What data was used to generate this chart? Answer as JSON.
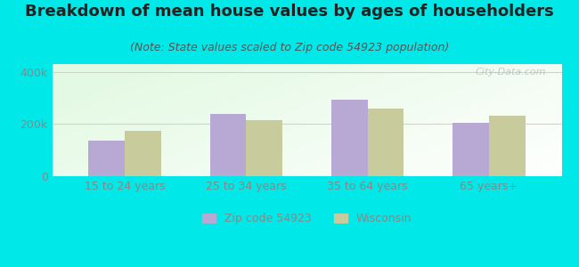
{
  "title": "Breakdown of mean house values by ages of householders",
  "subtitle": "(Note: State values scaled to Zip code 54923 population)",
  "categories": [
    "15 to 24 years",
    "25 to 34 years",
    "35 to 64 years",
    "65 years+"
  ],
  "zip_values": [
    135000,
    240000,
    295000,
    205000
  ],
  "state_values": [
    175000,
    215000,
    260000,
    232000
  ],
  "zip_color": "#b8a8d4",
  "state_color": "#c8cc9c",
  "background_outer": "#00e8e8",
  "ylim": [
    0,
    430000
  ],
  "ytick_labels": [
    "0",
    "200k",
    "400k"
  ],
  "ytick_values": [
    0,
    200000,
    400000
  ],
  "zip_label": "Zip code 54923",
  "state_label": "Wisconsin",
  "watermark": "City-Data.com",
  "title_fontsize": 13,
  "subtitle_fontsize": 9,
  "axis_fontsize": 9,
  "legend_fontsize": 9,
  "bar_width": 0.3,
  "grid_color": "#e8c8c8",
  "tick_color": "#888888",
  "title_color": "#222222",
  "subtitle_color": "#555555"
}
